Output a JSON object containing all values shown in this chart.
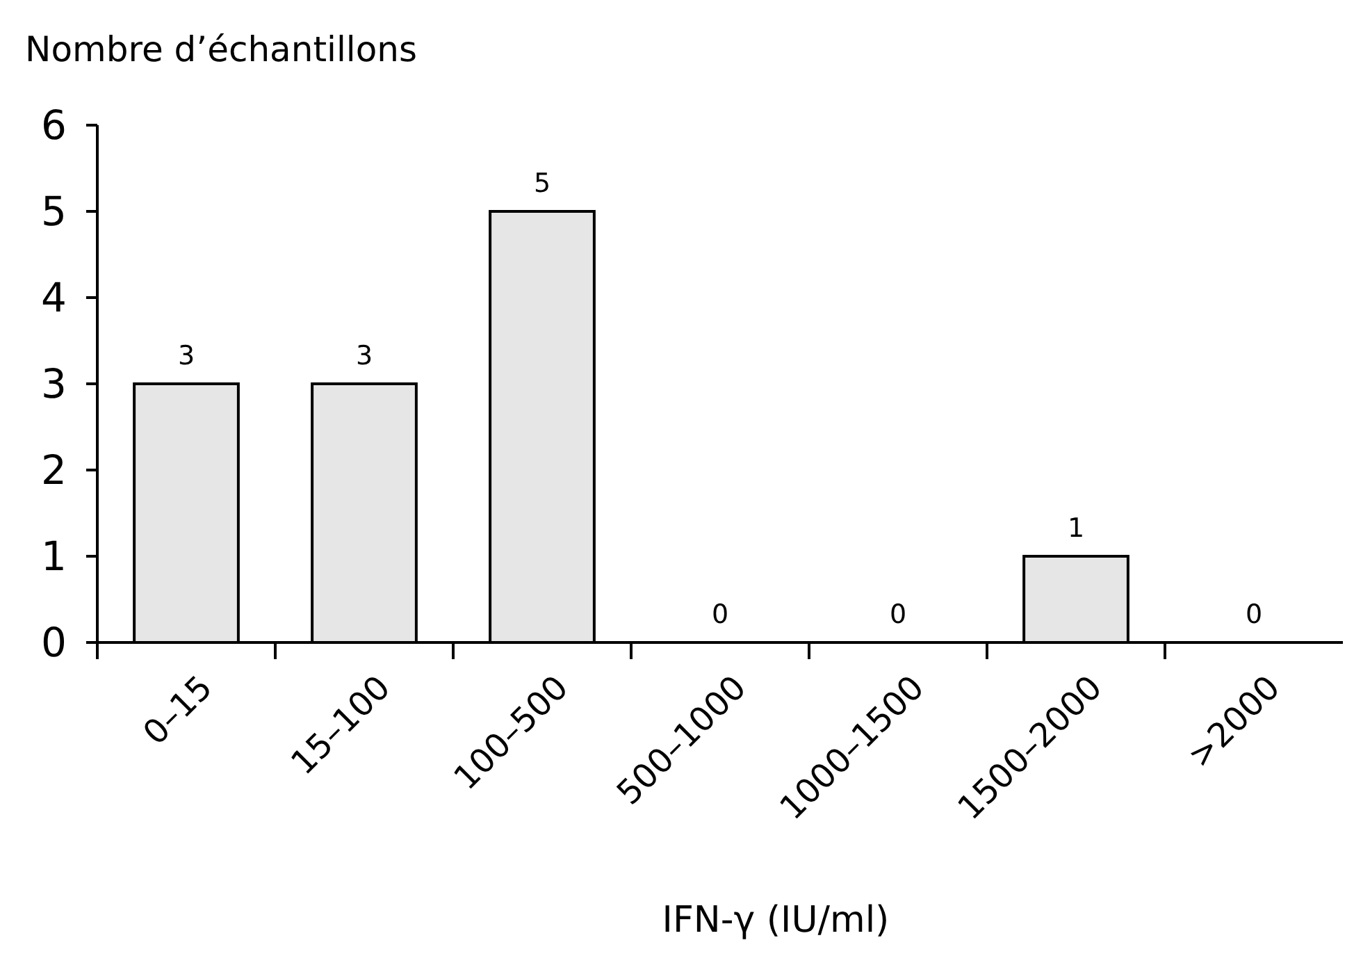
{
  "chart_data": {
    "type": "bar",
    "ylabel": "Nombre d’échantillons",
    "xlabel": "IFN-γ (IU/ml)",
    "categories": [
      "0–15",
      "15–100",
      "100–500",
      "500–1000",
      "1000–1500",
      "1500–2000",
      ">2000"
    ],
    "values": [
      3,
      3,
      5,
      0,
      0,
      1,
      0
    ],
    "color": "#e6e6e6",
    "ylim": [
      0,
      6
    ],
    "yticks": [
      0,
      1,
      2,
      3,
      4,
      5,
      6
    ],
    "data_labels": true
  }
}
